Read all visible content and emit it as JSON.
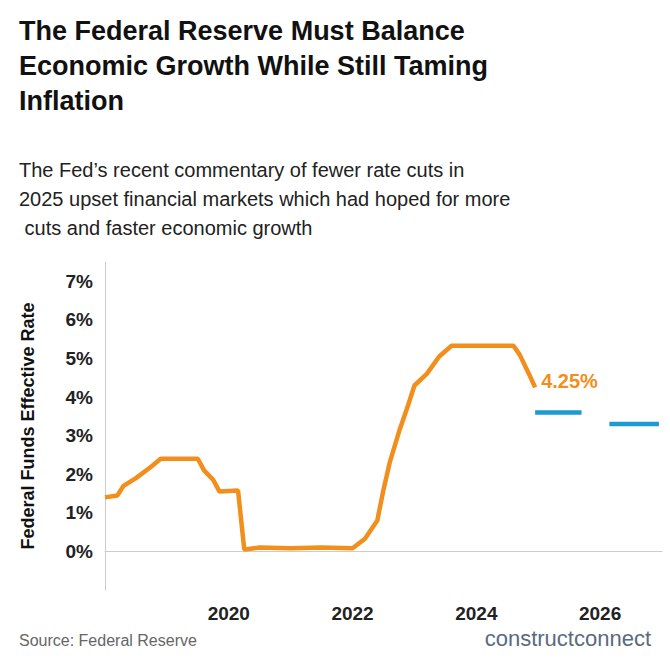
{
  "chart_data": {
    "type": "line",
    "title": "The Federal Reserve Must Balance Economic Growth While Still Taming Inflation",
    "subtitle": "The Fed’s recent commentary of fewer rate cuts in 2025 upset financial markets which had hoped for more cuts and faster economic growth",
    "y_label": "Federal Funds Effective Rate",
    "source": "Source: Federal Reserve",
    "credit": "constructconnect",
    "annotations": [
      {
        "x": 2024.95,
        "y": 4.25,
        "text": "4.25%"
      }
    ],
    "xlim": [
      2018,
      2027
    ],
    "xticks": [
      2020,
      2022,
      2024,
      2026
    ],
    "ylim": [
      -1,
      7.5
    ],
    "yticks": [
      {
        "value": 0,
        "label": "0%"
      },
      {
        "value": 1,
        "label": "1%"
      },
      {
        "value": 2,
        "label": "2%"
      },
      {
        "value": 3,
        "label": "3%"
      },
      {
        "value": 4,
        "label": "4%"
      },
      {
        "value": 5,
        "label": "5%"
      },
      {
        "value": 6,
        "label": "6%"
      },
      {
        "value": 7,
        "label": "7%"
      }
    ],
    "grid": false,
    "series": [
      {
        "color": "#f28e1c",
        "line_style": "solid",
        "x": [
          2018.0,
          2018.2,
          2018.3,
          2018.5,
          2018.75,
          2018.9,
          2019.5,
          2019.6,
          2019.75,
          2019.85,
          2020.15,
          2020.25,
          2020.5,
          2021.0,
          2021.5,
          2022.0,
          2022.2,
          2022.4,
          2022.5,
          2022.6,
          2022.75,
          2022.9,
          2023.0,
          2023.2,
          2023.4,
          2023.6,
          2024.6,
          2024.7,
          2024.85,
          2024.95
        ],
        "values": [
          1.4,
          1.45,
          1.7,
          1.9,
          2.2,
          2.4,
          2.4,
          2.1,
          1.85,
          1.55,
          1.58,
          0.05,
          0.1,
          0.08,
          0.1,
          0.08,
          0.33,
          0.8,
          1.6,
          2.3,
          3.1,
          3.8,
          4.3,
          4.6,
          5.05,
          5.33,
          5.33,
          5.1,
          4.6,
          4.25
        ]
      },
      {
        "color": "#1b9ad6",
        "line_style": "solid",
        "x": [
          2024.95,
          2025.7,
          2025.9,
          2026.15,
          2026.95
        ],
        "values": [
          3.6,
          3.6,
          null,
          3.3,
          3.3
        ]
      }
    ]
  }
}
